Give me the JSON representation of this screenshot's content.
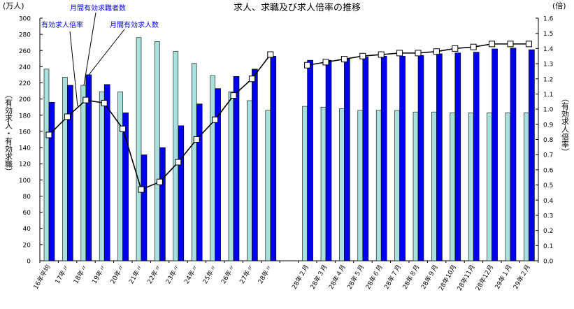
{
  "chart_data": {
    "type": "bar+line",
    "title": "求人、求職及び求人倍率の推移",
    "left_unit": "(万人)",
    "right_unit": "(倍)",
    "ylabel_left": "（有効求人・有効求職）",
    "ylabel_right": "（有効求人倍率）",
    "ylim_left": [
      0,
      300
    ],
    "ylim_right": [
      0,
      1.6
    ],
    "left_ticks": [
      "0",
      "20",
      "40",
      "60",
      "80",
      "100",
      "120",
      "140",
      "160",
      "180",
      "200",
      "220",
      "240",
      "260",
      "280",
      "300"
    ],
    "right_ticks": [
      "0.0",
      "0.1",
      "0.2",
      "0.3",
      "0.4",
      "0.5",
      "0.6",
      "0.7",
      "0.8",
      "0.9",
      "1.0",
      "1.1",
      "1.2",
      "1.3",
      "1.4",
      "1.5",
      "1.6"
    ],
    "categories": [
      "16年平均",
      "17年〃",
      "18年〃",
      "19年〃",
      "20年〃",
      "21年〃",
      "22年〃",
      "23年〃",
      "24年〃",
      "25年〃",
      "26年〃",
      "27年〃",
      "28年〃",
      "",
      "28年２月",
      "28年３月",
      "28年４月",
      "28年５月",
      "28年６月",
      "28年７月",
      "28年８月",
      "28年９月",
      "28年10月",
      "28年11月",
      "28年12月",
      "29年１月",
      "29年２月"
    ],
    "series": [
      {
        "name": "月間有効求職者数",
        "axis": "left",
        "kind": "bar",
        "color": "#a8e0dc",
        "values": [
          237,
          227,
          217,
          209,
          209,
          276,
          271,
          259,
          244,
          229,
          209,
          198,
          186,
          null,
          191,
          190,
          188,
          186,
          186,
          186,
          184,
          184,
          183,
          183,
          183,
          183,
          183
        ]
      },
      {
        "name": "月間有効求人数",
        "axis": "left",
        "kind": "bar",
        "color": "#0000ee",
        "values": [
          196,
          217,
          230,
          218,
          183,
          131,
          140,
          167,
          194,
          213,
          228,
          237,
          253,
          null,
          248,
          248,
          250,
          252,
          253,
          253,
          254,
          256,
          257,
          258,
          262,
          263,
          261
        ]
      },
      {
        "name": "有効求人倍率",
        "axis": "right",
        "kind": "line",
        "color": "#000000",
        "values": [
          0.83,
          0.95,
          1.06,
          1.04,
          0.87,
          0.47,
          0.52,
          0.65,
          0.8,
          0.93,
          1.09,
          1.2,
          1.36,
          null,
          1.29,
          1.31,
          1.33,
          1.35,
          1.36,
          1.37,
          1.37,
          1.38,
          1.4,
          1.41,
          1.43,
          1.43,
          1.43
        ]
      }
    ],
    "legend": {
      "ratio_label": "有効求人倍率",
      "seekers_label": "月間有効求職者数",
      "openings_label": "月間有効求人数",
      "label_color": "#0000ee",
      "placement": "top-left, callouts"
    },
    "grid": false
  }
}
